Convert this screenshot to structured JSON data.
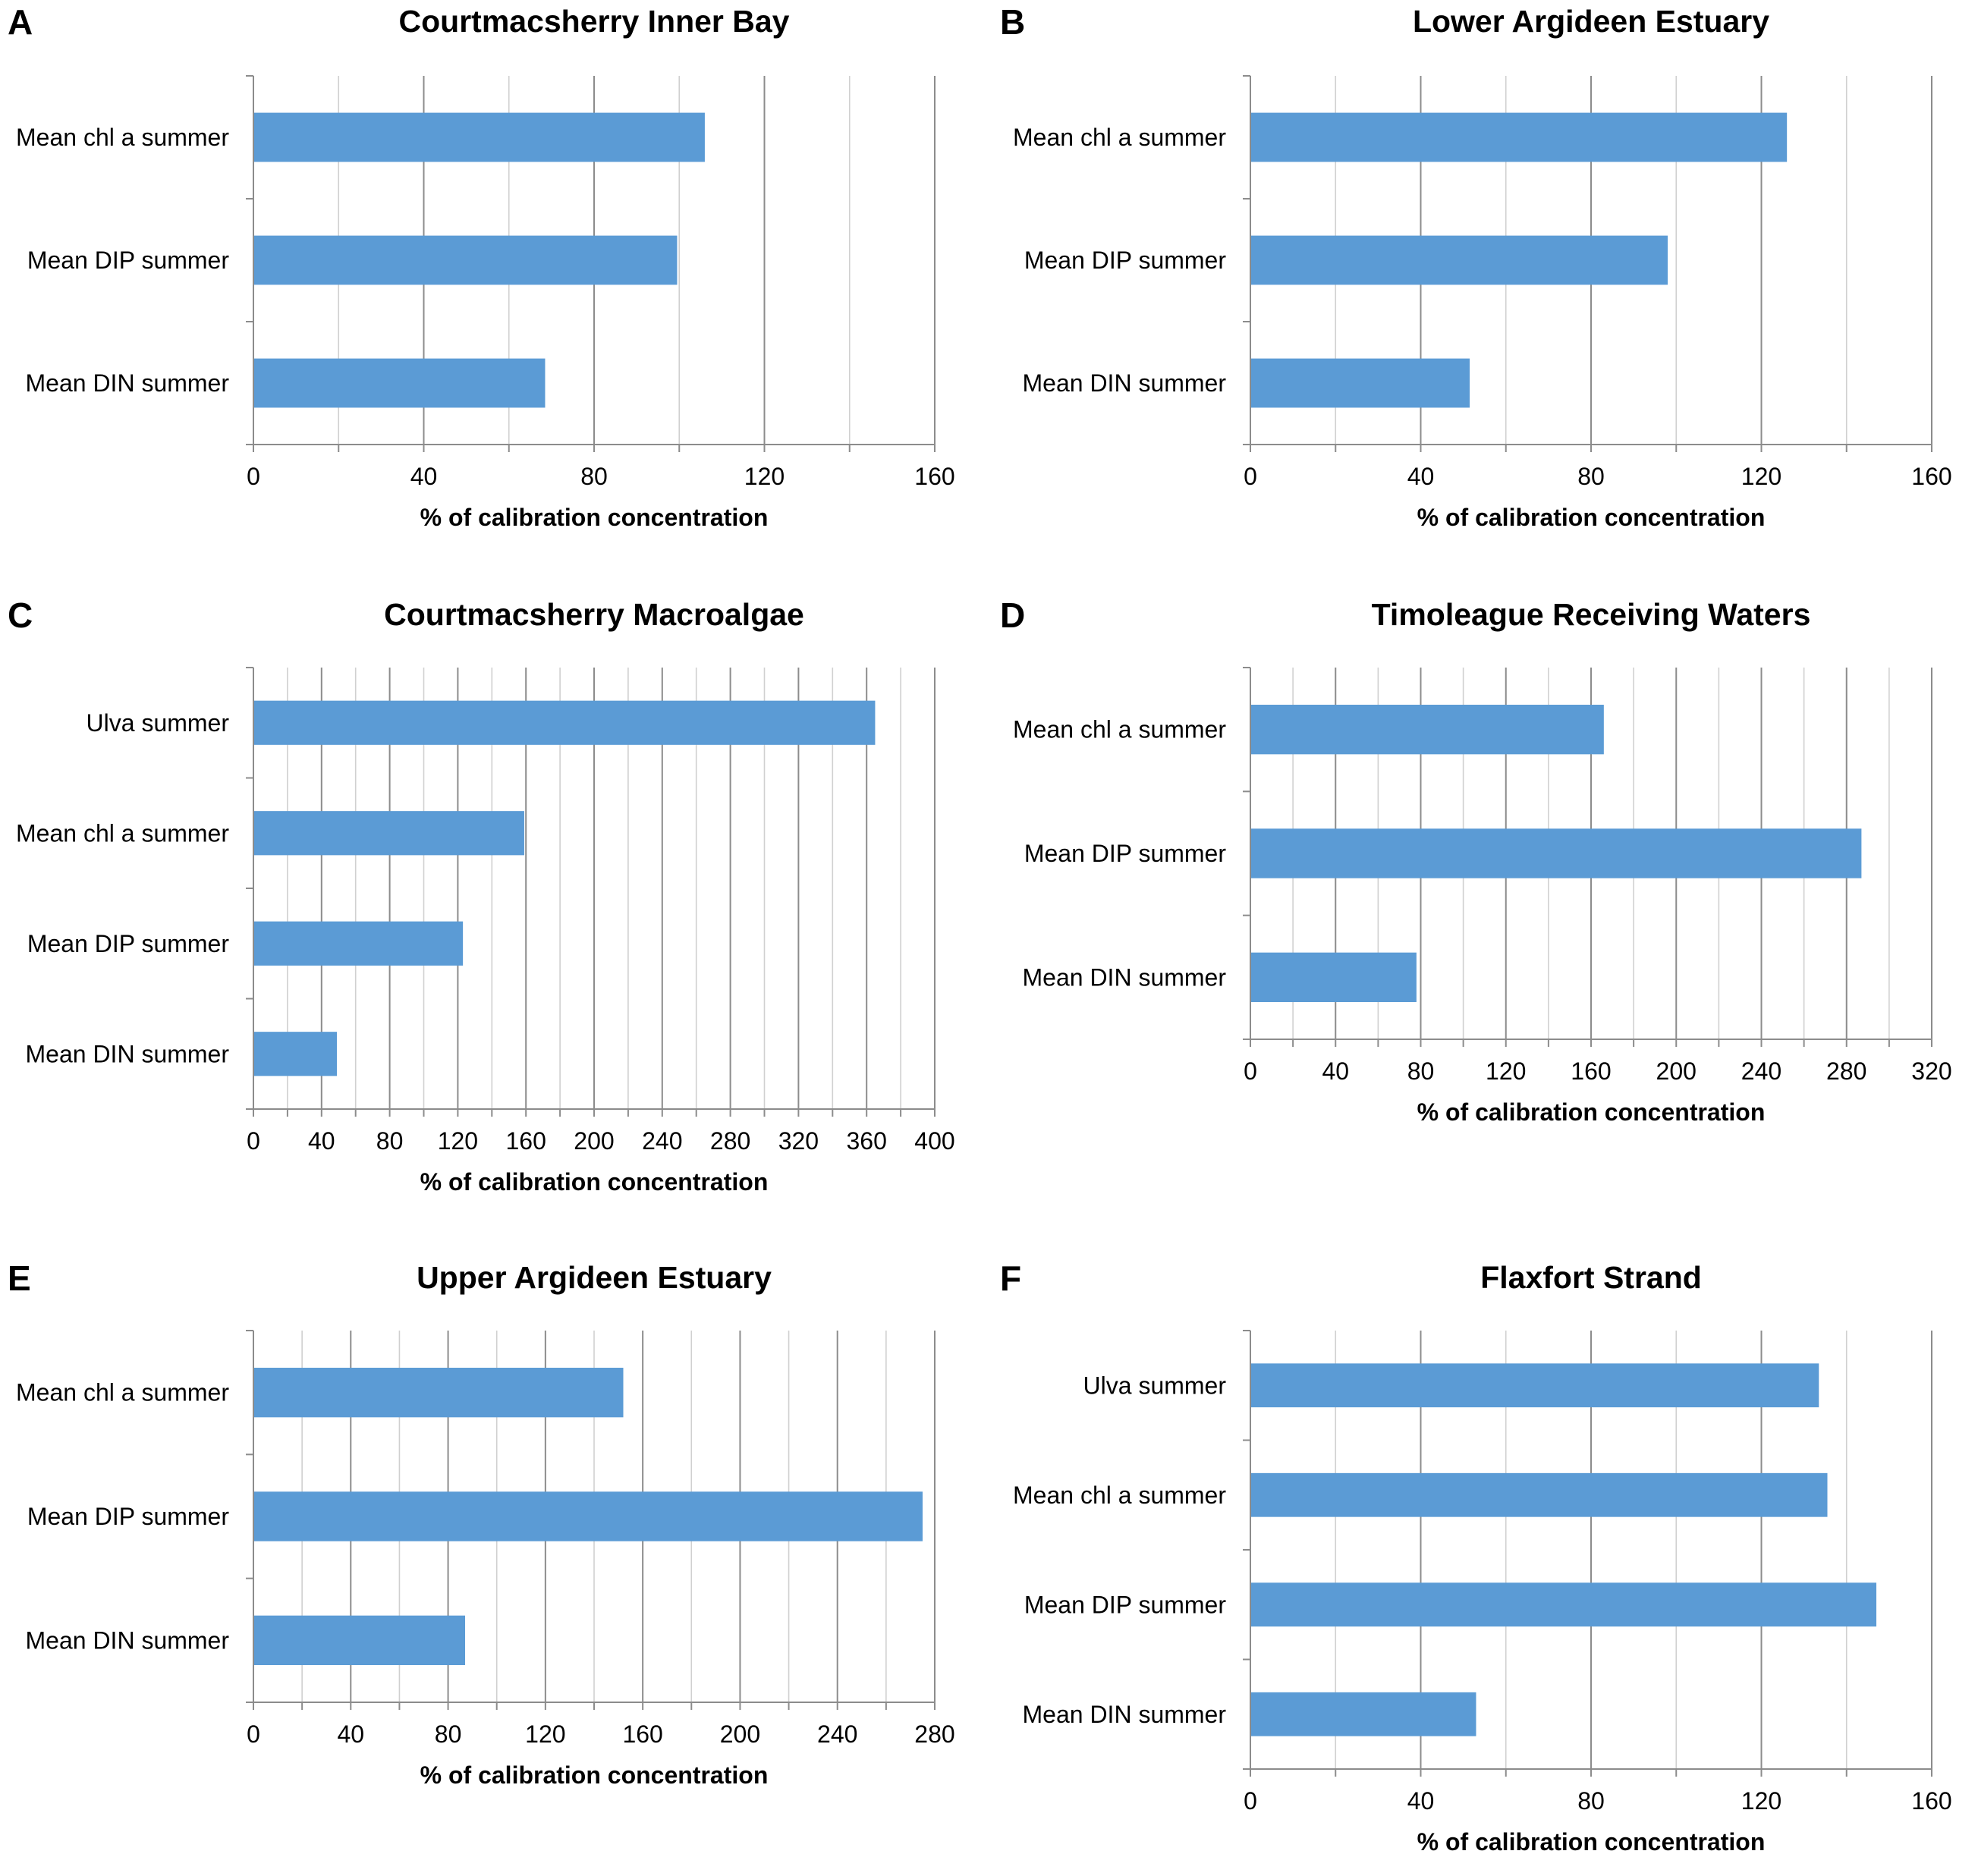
{
  "chart_data": [
    {
      "panel": "A",
      "type": "bar",
      "orientation": "horizontal",
      "title": "Courtmacsherry Inner Bay",
      "xlabel": "% of calibration concentration",
      "ylabel": "",
      "xlim": [
        0,
        160
      ],
      "ticks": [
        0,
        40,
        80,
        120,
        160
      ],
      "gridlines": [
        0,
        20,
        40,
        60,
        80,
        100,
        120,
        140,
        160
      ],
      "categories": [
        "Mean chl a summer",
        "Mean DIP summer",
        "Mean DIN summer"
      ],
      "values": [
        106,
        99.5,
        68.5
      ],
      "color": "#5b9bd5"
    },
    {
      "panel": "B",
      "type": "bar",
      "orientation": "horizontal",
      "title": "Lower Argideen Estuary",
      "xlabel": "% of calibration concentration",
      "ylabel": "",
      "xlim": [
        0,
        160
      ],
      "ticks": [
        0,
        40,
        80,
        120,
        160
      ],
      "gridlines": [
        0,
        20,
        40,
        60,
        80,
        100,
        120,
        140,
        160
      ],
      "categories": [
        "Mean chl a summer",
        "Mean DIP summer",
        "Mean DIN summer"
      ],
      "values": [
        126,
        98,
        51.5
      ],
      "color": "#5b9bd5"
    },
    {
      "panel": "C",
      "type": "bar",
      "orientation": "horizontal",
      "title": "Courtmacsherry Macroalgae",
      "xlabel": "% of calibration concentration",
      "ylabel": "",
      "xlim": [
        0,
        400
      ],
      "ticks": [
        0,
        40,
        80,
        120,
        160,
        200,
        240,
        280,
        320,
        360,
        400
      ],
      "gridlines": [
        0,
        20,
        40,
        60,
        80,
        100,
        120,
        140,
        160,
        180,
        200,
        220,
        240,
        260,
        280,
        300,
        320,
        340,
        360,
        380,
        400
      ],
      "categories": [
        "Ulva summer",
        "Mean chl a summer",
        "Mean DIP summer",
        "Mean DIN summer"
      ],
      "values": [
        365,
        159,
        123,
        49
      ],
      "color": "#5b9bd5"
    },
    {
      "panel": "D",
      "type": "bar",
      "orientation": "horizontal",
      "title": "Timoleague Receiving Waters",
      "xlabel": "% of calibration concentration",
      "ylabel": "",
      "xlim": [
        0,
        320
      ],
      "ticks": [
        0,
        40,
        80,
        120,
        160,
        200,
        240,
        280,
        320
      ],
      "gridlines": [
        0,
        20,
        40,
        60,
        80,
        100,
        120,
        140,
        160,
        180,
        200,
        220,
        240,
        260,
        280,
        300,
        320
      ],
      "categories": [
        "Mean chl a summer",
        "Mean DIP summer",
        "Mean DIN summer"
      ],
      "values": [
        166,
        287,
        78
      ],
      "color": "#5b9bd5"
    },
    {
      "panel": "E",
      "type": "bar",
      "orientation": "horizontal",
      "title": "Upper Argideen Estuary",
      "xlabel": "% of calibration concentration",
      "ylabel": "",
      "xlim": [
        0,
        280
      ],
      "ticks": [
        0,
        40,
        80,
        120,
        160,
        200,
        240,
        280
      ],
      "gridlines": [
        0,
        20,
        40,
        60,
        80,
        100,
        120,
        140,
        160,
        180,
        200,
        220,
        240,
        260,
        280
      ],
      "categories": [
        "Mean chl a summer",
        "Mean DIP summer",
        "Mean DIN summer"
      ],
      "values": [
        152,
        275,
        87
      ],
      "color": "#5b9bd5"
    },
    {
      "panel": "F",
      "type": "bar",
      "orientation": "horizontal",
      "title": "Flaxfort Strand",
      "xlabel": "% of calibration concentration",
      "ylabel": "",
      "xlim": [
        0,
        160
      ],
      "ticks": [
        0,
        40,
        80,
        120,
        160
      ],
      "gridlines": [
        0,
        20,
        40,
        60,
        80,
        100,
        120,
        140,
        160
      ],
      "categories": [
        "Ulva summer",
        "Mean chl a summer",
        "Mean DIP summer",
        "Mean DIN summer"
      ],
      "values": [
        133.5,
        135.5,
        147,
        53
      ],
      "color": "#5b9bd5"
    }
  ]
}
